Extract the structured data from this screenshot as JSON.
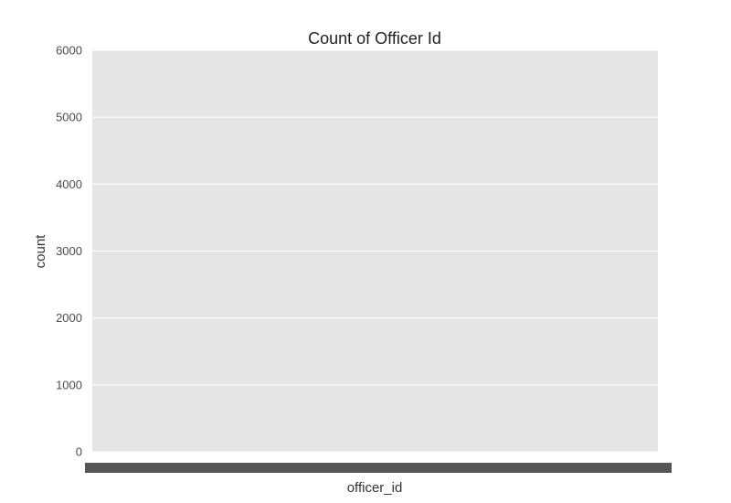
{
  "chart_data": {
    "type": "bar",
    "title": "Count of Officer Id",
    "xlabel": "officer_id",
    "ylabel": "count",
    "ylim": [
      0,
      6000
    ],
    "yticks": [
      0,
      1000,
      2000,
      3000,
      4000,
      5000,
      6000
    ],
    "grid": true,
    "legend": "none",
    "x_tick_labels_note": "",
    "categories": [],
    "values": [],
    "colors": {
      "plot_background": "#e5e5e5",
      "grid": "#ffffff",
      "tick_text": "#4d4d4d",
      "x_tick_smear": "#555555"
    }
  }
}
